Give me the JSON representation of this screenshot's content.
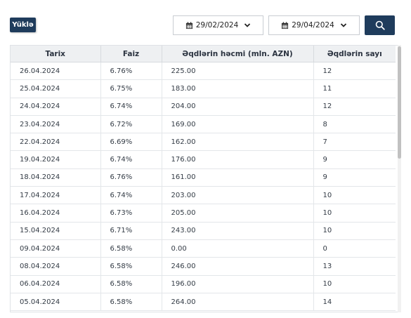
{
  "toolbar": {
    "load_label": "Yüklə",
    "date_from": "29/02/2024",
    "date_to": "29/04/2024"
  },
  "table": {
    "headers": [
      "Tarix",
      "Faiz",
      "Əqdlərin həcmi (mln. AZN)",
      "Əqdlərin sayı"
    ],
    "rows": [
      [
        "26.04.2024",
        "6.76%",
        "225.00",
        "12"
      ],
      [
        "25.04.2024",
        "6.75%",
        "183.00",
        "11"
      ],
      [
        "24.04.2024",
        "6.74%",
        "204.00",
        "12"
      ],
      [
        "23.04.2024",
        "6.72%",
        "169.00",
        "8"
      ],
      [
        "22.04.2024",
        "6.69%",
        "162.00",
        "7"
      ],
      [
        "19.04.2024",
        "6.74%",
        "176.00",
        "9"
      ],
      [
        "18.04.2024",
        "6.76%",
        "161.00",
        "9"
      ],
      [
        "17.04.2024",
        "6.74%",
        "203.00",
        "10"
      ],
      [
        "16.04.2024",
        "6.73%",
        "205.00",
        "10"
      ],
      [
        "15.04.2024",
        "6.71%",
        "243.00",
        "10"
      ],
      [
        "09.04.2024",
        "6.58%",
        "0.00",
        "0"
      ],
      [
        "08.04.2024",
        "6.58%",
        "246.00",
        "13"
      ],
      [
        "06.04.2024",
        "6.58%",
        "196.00",
        "10"
      ],
      [
        "05.04.2024",
        "6.58%",
        "264.00",
        "14"
      ]
    ]
  },
  "colors": {
    "accent": "#1f3c5c",
    "header_bg": "#eef0f2"
  },
  "icons": {
    "calendar": "calendar-icon",
    "chevron": "chevron-down-icon",
    "search": "search-icon"
  }
}
